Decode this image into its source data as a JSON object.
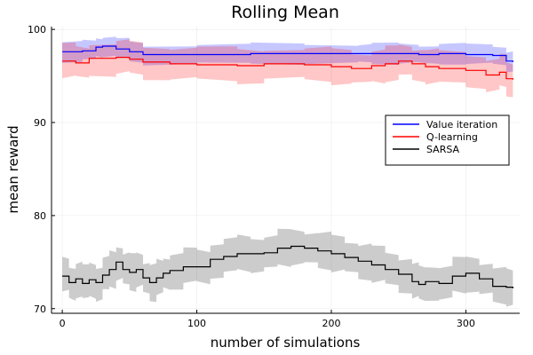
{
  "chart_data": {
    "type": "line",
    "title": "Rolling Mean",
    "xlabel": "number of simulations",
    "ylabel": "mean reward",
    "xlim": [
      -8,
      340
    ],
    "ylim": [
      69.5,
      100.3
    ],
    "xticks": [
      0,
      100,
      200,
      300
    ],
    "yticks": [
      70,
      80,
      90,
      100
    ],
    "grid": true,
    "legend_position": "right",
    "series": [
      {
        "name": "Value iteration",
        "color": "#0000ff",
        "band_color": "rgba(0,0,255,0.22)",
        "points": [
          [
            0,
            97.6
          ],
          [
            15,
            97.7
          ],
          [
            25,
            98.1
          ],
          [
            30,
            98.2
          ],
          [
            40,
            97.9
          ],
          [
            50,
            97.6
          ],
          [
            60,
            97.3
          ],
          [
            100,
            97.3
          ],
          [
            140,
            97.4
          ],
          [
            180,
            97.4
          ],
          [
            220,
            97.4
          ],
          [
            230,
            97.4
          ],
          [
            250,
            97.4
          ],
          [
            265,
            97.3
          ],
          [
            280,
            97.4
          ],
          [
            300,
            97.3
          ],
          [
            320,
            97.2
          ],
          [
            330,
            96.6
          ],
          [
            335,
            96.5
          ]
        ],
        "band_width": 1.2
      },
      {
        "name": "Q-learning",
        "color": "#ff0000",
        "band_color": "rgba(255,0,0,0.22)",
        "points": [
          [
            0,
            96.6
          ],
          [
            10,
            96.4
          ],
          [
            20,
            96.9
          ],
          [
            40,
            97.0
          ],
          [
            50,
            96.8
          ],
          [
            60,
            96.5
          ],
          [
            80,
            96.3
          ],
          [
            100,
            96.2
          ],
          [
            130,
            96.1
          ],
          [
            150,
            96.3
          ],
          [
            180,
            96.2
          ],
          [
            200,
            96.0
          ],
          [
            215,
            95.8
          ],
          [
            230,
            96.1
          ],
          [
            240,
            96.3
          ],
          [
            250,
            96.6
          ],
          [
            260,
            96.3
          ],
          [
            270,
            96.0
          ],
          [
            280,
            95.8
          ],
          [
            300,
            95.6
          ],
          [
            315,
            95.1
          ],
          [
            325,
            95.4
          ],
          [
            330,
            94.7
          ],
          [
            335,
            94.6
          ]
        ],
        "band_width": 2.0
      },
      {
        "name": "SARSA",
        "color": "#000000",
        "band_color": "rgba(0,0,0,0.2)",
        "points": [
          [
            0,
            73.5
          ],
          [
            5,
            72.8
          ],
          [
            10,
            73.2
          ],
          [
            15,
            72.7
          ],
          [
            20,
            73.1
          ],
          [
            25,
            72.8
          ],
          [
            30,
            73.6
          ],
          [
            35,
            74.2
          ],
          [
            40,
            75.0
          ],
          [
            45,
            74.2
          ],
          [
            50,
            73.9
          ],
          [
            55,
            74.2
          ],
          [
            60,
            73.3
          ],
          [
            65,
            72.8
          ],
          [
            70,
            73.3
          ],
          [
            75,
            73.8
          ],
          [
            80,
            74.1
          ],
          [
            90,
            74.5
          ],
          [
            100,
            74.5
          ],
          [
            110,
            75.3
          ],
          [
            120,
            75.6
          ],
          [
            130,
            75.9
          ],
          [
            140,
            75.9
          ],
          [
            150,
            76.0
          ],
          [
            160,
            76.5
          ],
          [
            170,
            76.7
          ],
          [
            180,
            76.5
          ],
          [
            190,
            76.2
          ],
          [
            200,
            75.9
          ],
          [
            210,
            75.5
          ],
          [
            220,
            75.1
          ],
          [
            230,
            74.7
          ],
          [
            240,
            74.2
          ],
          [
            250,
            73.7
          ],
          [
            260,
            72.9
          ],
          [
            265,
            72.6
          ],
          [
            270,
            72.9
          ],
          [
            280,
            72.7
          ],
          [
            290,
            73.5
          ],
          [
            300,
            73.8
          ],
          [
            310,
            73.2
          ],
          [
            320,
            72.4
          ],
          [
            330,
            72.3
          ],
          [
            335,
            72.2
          ]
        ],
        "band_width": 2.1
      }
    ]
  }
}
